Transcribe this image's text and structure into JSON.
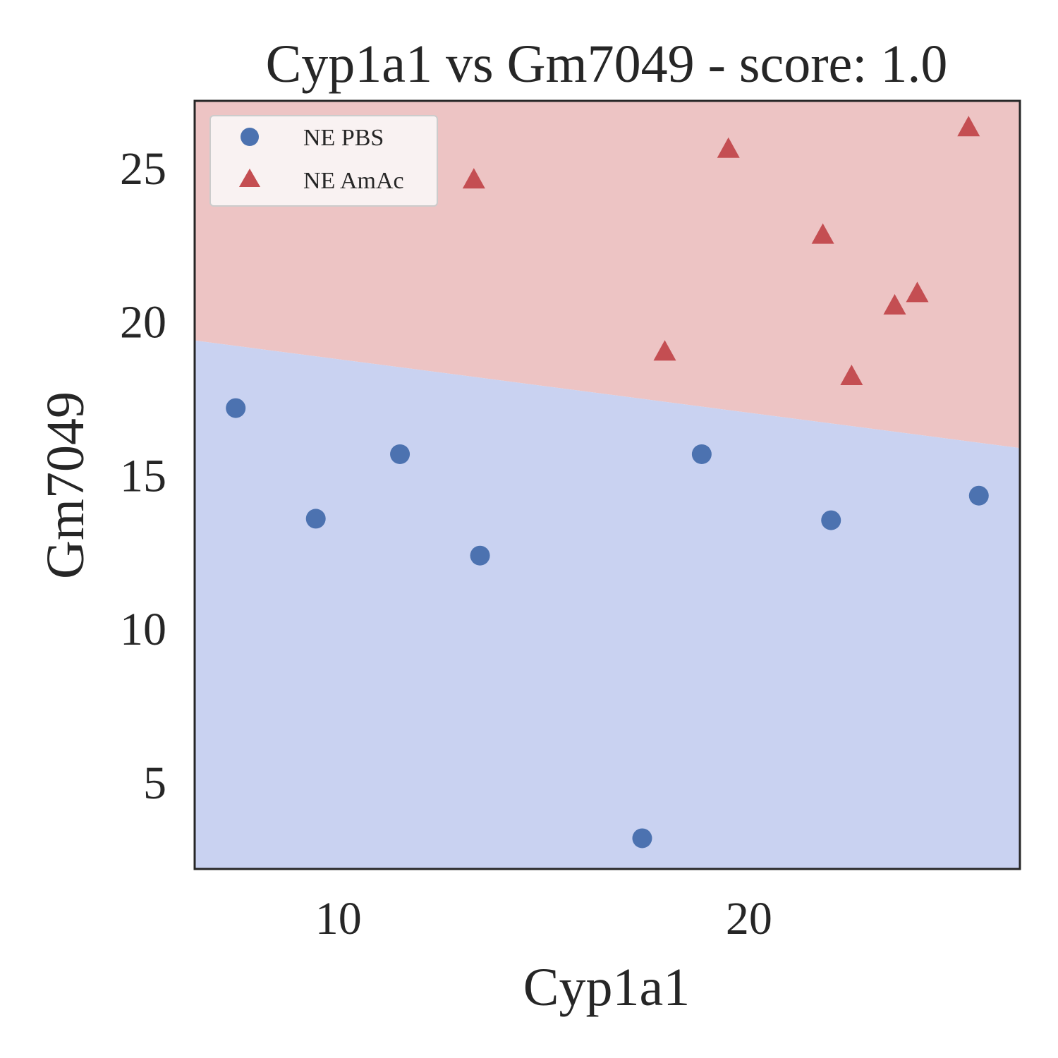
{
  "chart_data": {
    "type": "scatter",
    "title": "Cyp1a1 vs Gm7049 - score: 1.0",
    "xlabel": "Cyp1a1",
    "ylabel": "Gm7049",
    "xlim": [
      6.5,
      26.6
    ],
    "ylim": [
      2.2,
      27.2
    ],
    "xticks": [
      10,
      20
    ],
    "yticks": [
      5,
      10,
      15,
      20,
      25
    ],
    "grid": false,
    "legend_position": "top-left",
    "decision_boundary": {
      "points": [
        [
          6.5,
          19.4
        ],
        [
          26.6,
          15.9
        ]
      ],
      "region_above_color": "#edc4c4",
      "region_below_color": "#c9d2f1"
    },
    "series": [
      {
        "name": "NE PBS",
        "marker": "circle",
        "color": "#4c72b0",
        "points": [
          [
            7.5,
            17.2
          ],
          [
            9.45,
            13.6
          ],
          [
            11.5,
            15.7
          ],
          [
            13.45,
            12.4
          ],
          [
            17.4,
            3.2
          ],
          [
            18.85,
            15.7
          ],
          [
            22.0,
            13.55
          ],
          [
            25.6,
            14.35
          ]
        ]
      },
      {
        "name": "NE AmAc",
        "marker": "triangle",
        "color": "#c44e52",
        "points": [
          [
            13.3,
            24.6
          ],
          [
            17.95,
            19.0
          ],
          [
            19.5,
            25.6
          ],
          [
            21.8,
            22.8
          ],
          [
            22.5,
            18.2
          ],
          [
            23.55,
            20.5
          ],
          [
            24.1,
            20.9
          ],
          [
            25.35,
            26.3
          ]
        ]
      }
    ]
  }
}
